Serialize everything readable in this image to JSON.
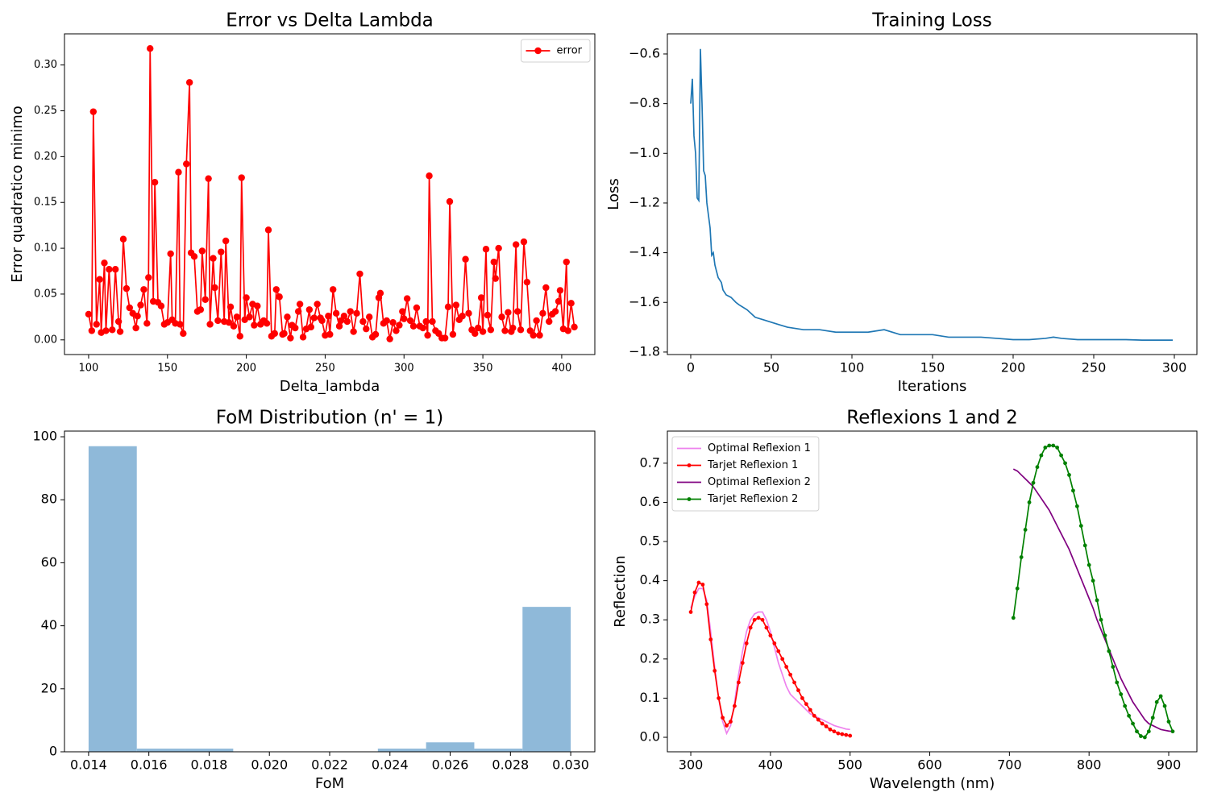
{
  "chart_data": [
    {
      "type": "line",
      "title": "Error vs Delta Lambda",
      "xlabel": "Delta_lambda",
      "ylabel": "Error quadratico minimo",
      "xlim": [
        84.7,
        421
      ],
      "ylim": [
        -0.016,
        0.334
      ],
      "xticks": [
        100,
        150,
        200,
        250,
        300,
        350,
        400
      ],
      "yticks": [
        {
          "value": 0,
          "label": "0.00"
        },
        0.05,
        {
          "value": 0.1,
          "label": "0.10"
        },
        0.15,
        {
          "value": 0.2,
          "label": "0.20"
        },
        0.25,
        {
          "value": 0.3,
          "label": "0.30"
        }
      ],
      "legend": "upper right",
      "series": [
        {
          "name": "error",
          "color": "#ff0000",
          "marker": true,
          "x": [
            100,
            102,
            103,
            105,
            107,
            108,
            110,
            111,
            113,
            115,
            117,
            119,
            120,
            122,
            124,
            126,
            128,
            130,
            131,
            133,
            135,
            137,
            138,
            139,
            141,
            142,
            144,
            146,
            148,
            150,
            152,
            153,
            155,
            157,
            158,
            160,
            162,
            164,
            165,
            167,
            169,
            171,
            172,
            174,
            176,
            177,
            179,
            180,
            182,
            184,
            186,
            187,
            189,
            190,
            192,
            194,
            196,
            197,
            199,
            200,
            202,
            204,
            205,
            207,
            209,
            211,
            213,
            214,
            216,
            218,
            219,
            221,
            223,
            224,
            226,
            228,
            229,
            231,
            233,
            234,
            236,
            238,
            240,
            241,
            243,
            245,
            247,
            248,
            250,
            252,
            253,
            255,
            257,
            259,
            260,
            262,
            264,
            266,
            268,
            270,
            272,
            274,
            276,
            278,
            280,
            282,
            284,
            285,
            287,
            289,
            291,
            293,
            295,
            297,
            299,
            300,
            302,
            304,
            306,
            308,
            310,
            312,
            314,
            315,
            316,
            318,
            320,
            322,
            324,
            326,
            328,
            329,
            331,
            333,
            335,
            337,
            339,
            341,
            343,
            345,
            347,
            349,
            350,
            352,
            353,
            355,
            357,
            358,
            360,
            362,
            364,
            366,
            368,
            369,
            371,
            372,
            374,
            376,
            378,
            380,
            382,
            384,
            386,
            388,
            390,
            392,
            394,
            396,
            398,
            399,
            401,
            403,
            404,
            406,
            408
          ],
          "values": [
            0.028,
            0.01,
            0.249,
            0.017,
            0.066,
            0.008,
            0.084,
            0.01,
            0.077,
            0.011,
            0.077,
            0.02,
            0.009,
            0.11,
            0.056,
            0.035,
            0.029,
            0.013,
            0.026,
            0.038,
            0.055,
            0.018,
            0.068,
            0.318,
            0.042,
            0.172,
            0.041,
            0.037,
            0.017,
            0.019,
            0.094,
            0.022,
            0.018,
            0.183,
            0.017,
            0.007,
            0.192,
            0.281,
            0.095,
            0.091,
            0.031,
            0.033,
            0.097,
            0.044,
            0.176,
            0.017,
            0.089,
            0.057,
            0.021,
            0.096,
            0.02,
            0.108,
            0.019,
            0.036,
            0.015,
            0.025,
            0.004,
            0.177,
            0.022,
            0.046,
            0.025,
            0.039,
            0.016,
            0.037,
            0.017,
            0.021,
            0.018,
            0.12,
            0.004,
            0.007,
            0.055,
            0.047,
            0.006,
            0.007,
            0.025,
            0.002,
            0.016,
            0.013,
            0.031,
            0.039,
            0.003,
            0.012,
            0.033,
            0.014,
            0.024,
            0.039,
            0.024,
            0.021,
            0.005,
            0.026,
            0.006,
            0.055,
            0.029,
            0.015,
            0.021,
            0.026,
            0.02,
            0.031,
            0.009,
            0.029,
            0.072,
            0.02,
            0.012,
            0.025,
            0.003,
            0.006,
            0.046,
            0.051,
            0.018,
            0.021,
            0.001,
            0.019,
            0.01,
            0.016,
            0.031,
            0.023,
            0.045,
            0.021,
            0.015,
            0.035,
            0.015,
            0.013,
            0.02,
            0.005,
            0.179,
            0.02,
            0.01,
            0.007,
            0.002,
            0.002,
            0.036,
            0.151,
            0.006,
            0.038,
            0.022,
            0.026,
            0.088,
            0.029,
            0.011,
            0.007,
            0.013,
            0.046,
            0.009,
            0.099,
            0.027,
            0.011,
            0.085,
            0.067,
            0.1,
            0.025,
            0.01,
            0.03,
            0.009,
            0.013,
            0.104,
            0.031,
            0.011,
            0.107,
            0.063,
            0.01,
            0.005,
            0.021,
            0.005,
            0.029,
            0.057,
            0.02,
            0.028,
            0.031,
            0.042,
            0.054,
            0.012,
            0.085,
            0.01,
            0.04,
            0.014
          ]
        }
      ]
    },
    {
      "type": "line",
      "title": "Training Loss",
      "xlabel": "Iterations",
      "ylabel": "Loss",
      "xlim": [
        -14.5,
        314
      ],
      "ylim": [
        -1.81,
        -0.519
      ],
      "xticks": [
        0,
        50,
        100,
        150,
        200,
        250,
        300
      ],
      "yticks": [
        {
          "value": -0.6,
          "label": "−0.6"
        },
        {
          "value": -0.8,
          "label": "−0.8"
        },
        {
          "value": -1.0,
          "label": "−1.0"
        },
        {
          "value": -1.2,
          "label": "−1.2"
        },
        {
          "value": -1.4,
          "label": "−1.4"
        },
        {
          "value": -1.6,
          "label": "−1.6"
        },
        {
          "value": -1.8,
          "label": "−1.8"
        }
      ],
      "series": [
        {
          "color": "#1f77b4",
          "marker": false,
          "x": [
            0,
            1,
            2,
            3,
            4,
            5,
            6,
            7,
            8,
            9,
            10,
            11,
            12,
            13,
            14,
            15,
            17,
            19,
            20,
            22,
            25,
            28,
            30,
            35,
            40,
            45,
            50,
            55,
            60,
            70,
            80,
            90,
            100,
            110,
            120,
            130,
            140,
            150,
            160,
            170,
            180,
            190,
            200,
            210,
            220,
            225,
            230,
            240,
            250,
            260,
            270,
            280,
            290,
            299
          ],
          "values": [
            -0.8,
            -0.7,
            -0.93,
            -1.0,
            -1.18,
            -1.19,
            -0.58,
            -0.8,
            -1.07,
            -1.09,
            -1.2,
            -1.25,
            -1.3,
            -1.41,
            -1.4,
            -1.45,
            -1.5,
            -1.52,
            -1.55,
            -1.57,
            -1.58,
            -1.6,
            -1.61,
            -1.63,
            -1.66,
            -1.67,
            -1.68,
            -1.69,
            -1.7,
            -1.71,
            -1.71,
            -1.72,
            -1.72,
            -1.72,
            -1.71,
            -1.73,
            -1.73,
            -1.73,
            -1.74,
            -1.74,
            -1.74,
            -1.745,
            -1.75,
            -1.75,
            -1.745,
            -1.74,
            -1.745,
            -1.75,
            -1.75,
            -1.75,
            -1.75,
            -1.752,
            -1.752,
            -1.752
          ]
        }
      ]
    },
    {
      "type": "histogram",
      "title": "FoM Distribution (n' = 1)",
      "xlabel": "FoM",
      "xlim": [
        0.0132,
        0.0308
      ],
      "ylim": [
        0,
        101.8
      ],
      "xticks": [
        0.014,
        0.016,
        0.018,
        {
          "value": 0.02,
          "label": "0.020"
        },
        0.022,
        0.024,
        0.026,
        0.028,
        {
          "value": 0.03,
          "label": "0.030"
        }
      ],
      "yticks": [
        0,
        20,
        40,
        60,
        80,
        100
      ],
      "color": "#8fb9d9",
      "bins": [
        0.014,
        0.0156,
        0.0172,
        0.0188,
        0.0204,
        0.022,
        0.0236,
        0.0252,
        0.0268,
        0.0284,
        0.03
      ],
      "values": [
        97,
        1,
        1,
        0,
        0,
        0,
        1,
        3,
        1,
        46
      ]
    },
    {
      "type": "line",
      "title": "Reflexions 1 and 2",
      "xlabel": "Wavelength (nm)",
      "ylabel": "Reflection",
      "xlim": [
        270.6,
        935.4
      ],
      "ylim": [
        -0.037,
        0.782
      ],
      "xticks": [
        300,
        400,
        500,
        600,
        700,
        800,
        900
      ],
      "yticks": [
        {
          "value": 0,
          "label": "0.0"
        },
        0.1,
        0.2,
        0.3,
        0.4,
        0.5,
        0.6,
        0.7
      ],
      "legend": "upper left",
      "series": [
        {
          "name": "Optimal Reflexion 1",
          "color": "#ee82ee",
          "marker": false,
          "x": [
            300,
            305,
            310,
            315,
            320,
            325,
            330,
            335,
            340,
            345,
            350,
            355,
            360,
            365,
            370,
            375,
            380,
            385,
            390,
            395,
            400,
            405,
            410,
            415,
            420,
            425,
            430,
            435,
            440,
            445,
            450,
            455,
            460,
            465,
            470,
            475,
            480,
            485,
            490,
            495,
            500
          ],
          "values": [
            0.33,
            0.36,
            0.38,
            0.38,
            0.35,
            0.27,
            0.18,
            0.1,
            0.04,
            0.01,
            0.03,
            0.09,
            0.16,
            0.22,
            0.27,
            0.3,
            0.315,
            0.32,
            0.32,
            0.3,
            0.27,
            0.23,
            0.19,
            0.16,
            0.13,
            0.11,
            0.1,
            0.09,
            0.08,
            0.07,
            0.06,
            0.055,
            0.05,
            0.045,
            0.04,
            0.035,
            0.03,
            0.027,
            0.024,
            0.021,
            0.02
          ]
        },
        {
          "name": "Tarjet Reflexion 1",
          "color": "#ff0000",
          "marker": true,
          "x": [
            300,
            305,
            310,
            315,
            320,
            325,
            330,
            335,
            340,
            345,
            350,
            355,
            360,
            365,
            370,
            375,
            380,
            385,
            390,
            395,
            400,
            405,
            410,
            415,
            420,
            425,
            430,
            435,
            440,
            445,
            450,
            455,
            460,
            465,
            470,
            475,
            480,
            485,
            490,
            495,
            500
          ],
          "values": [
            0.32,
            0.37,
            0.395,
            0.39,
            0.34,
            0.25,
            0.17,
            0.1,
            0.05,
            0.03,
            0.04,
            0.08,
            0.14,
            0.19,
            0.24,
            0.28,
            0.3,
            0.305,
            0.3,
            0.28,
            0.26,
            0.24,
            0.22,
            0.2,
            0.18,
            0.16,
            0.14,
            0.12,
            0.1,
            0.085,
            0.07,
            0.055,
            0.045,
            0.035,
            0.028,
            0.02,
            0.015,
            0.01,
            0.008,
            0.006,
            0.004
          ]
        },
        {
          "name": "Optimal Reflexion 2",
          "color": "#800080",
          "marker": false,
          "x": [
            705,
            710,
            715,
            720,
            725,
            730,
            735,
            740,
            745,
            750,
            755,
            760,
            765,
            770,
            775,
            780,
            785,
            790,
            795,
            800,
            805,
            810,
            815,
            820,
            825,
            830,
            835,
            840,
            845,
            850,
            855,
            860,
            865,
            870,
            875,
            880,
            885,
            890,
            895,
            900,
            905
          ],
          "values": [
            0.685,
            0.68,
            0.67,
            0.66,
            0.65,
            0.64,
            0.625,
            0.61,
            0.595,
            0.58,
            0.56,
            0.54,
            0.52,
            0.5,
            0.48,
            0.455,
            0.43,
            0.405,
            0.38,
            0.355,
            0.33,
            0.3,
            0.275,
            0.25,
            0.225,
            0.2,
            0.175,
            0.15,
            0.13,
            0.11,
            0.09,
            0.075,
            0.06,
            0.045,
            0.035,
            0.03,
            0.025,
            0.02,
            0.018,
            0.016,
            0.015
          ]
        },
        {
          "name": "Tarjet Reflexion 2",
          "color": "#008000",
          "marker": true,
          "x": [
            705,
            710,
            715,
            720,
            725,
            730,
            735,
            740,
            745,
            750,
            755,
            760,
            765,
            770,
            775,
            780,
            785,
            790,
            795,
            800,
            805,
            810,
            815,
            820,
            825,
            830,
            835,
            840,
            845,
            850,
            855,
            860,
            865,
            870,
            875,
            880,
            885,
            890,
            895,
            900,
            905
          ],
          "values": [
            0.305,
            0.38,
            0.46,
            0.53,
            0.6,
            0.65,
            0.69,
            0.72,
            0.74,
            0.745,
            0.745,
            0.74,
            0.72,
            0.7,
            0.67,
            0.63,
            0.59,
            0.54,
            0.49,
            0.44,
            0.4,
            0.35,
            0.3,
            0.26,
            0.22,
            0.18,
            0.14,
            0.11,
            0.08,
            0.055,
            0.035,
            0.015,
            0.003,
            0.0,
            0.015,
            0.05,
            0.09,
            0.105,
            0.08,
            0.04,
            0.015
          ]
        }
      ]
    }
  ]
}
